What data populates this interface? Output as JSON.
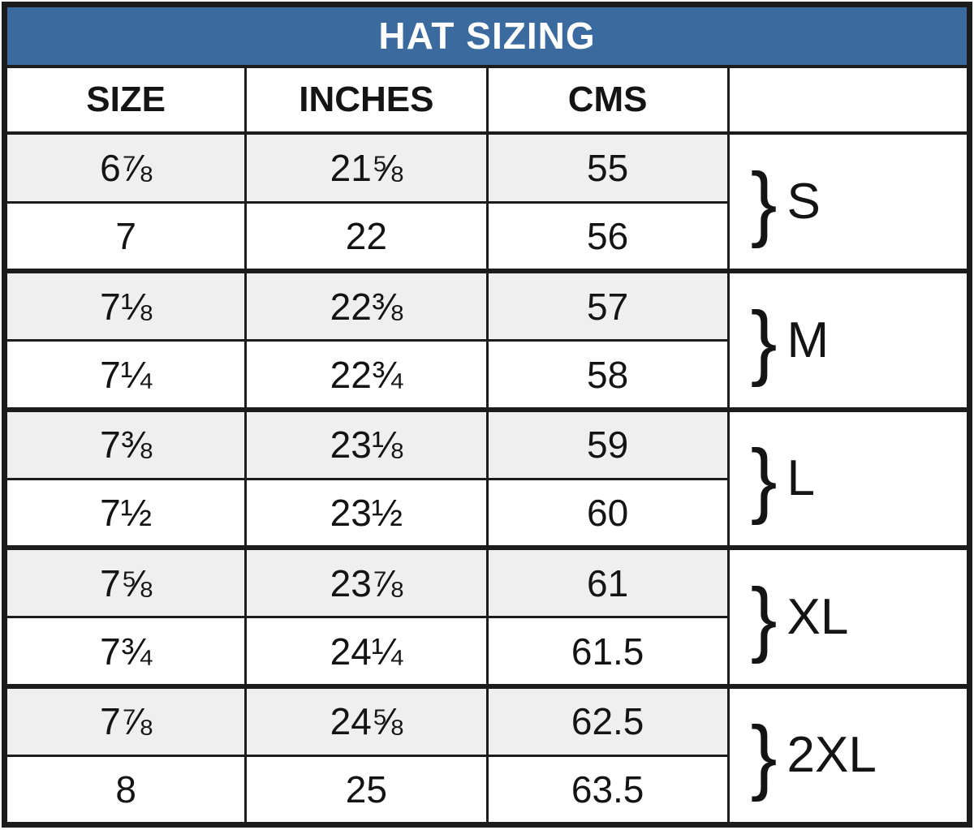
{
  "title": "HAT SIZING",
  "columns": {
    "size": "SIZE",
    "inches": "INCHES",
    "cms": "CMS",
    "group": ""
  },
  "rows": [
    {
      "size": "6⅞",
      "inches": "21⅝",
      "cms": "55"
    },
    {
      "size": "7",
      "inches": "22",
      "cms": "56"
    },
    {
      "size": "7⅛",
      "inches": "22⅜",
      "cms": "57"
    },
    {
      "size": "7¼",
      "inches": "22¾",
      "cms": "58"
    },
    {
      "size": "7⅜",
      "inches": "23⅛",
      "cms": "59"
    },
    {
      "size": "7½",
      "inches": "23½",
      "cms": "60"
    },
    {
      "size": "7⅝",
      "inches": "23⅞",
      "cms": "61"
    },
    {
      "size": "7¾",
      "inches": "24¼",
      "cms": "61.5"
    },
    {
      "size": "7⅞",
      "inches": "24⅝",
      "cms": "62.5"
    },
    {
      "size": "8",
      "inches": "25",
      "cms": "63.5"
    }
  ],
  "groups": [
    {
      "brace": "}",
      "label": "S"
    },
    {
      "brace": "}",
      "label": "M"
    },
    {
      "brace": "}",
      "label": "L"
    },
    {
      "brace": "}",
      "label": "XL"
    },
    {
      "brace": "}",
      "label": "2XL"
    }
  ],
  "colors": {
    "header_bg": "#3a6a9e",
    "header_text": "#ffffff",
    "row_alt_bg": "#f0eff0",
    "border": "#1c1c1c",
    "text": "#141414"
  }
}
